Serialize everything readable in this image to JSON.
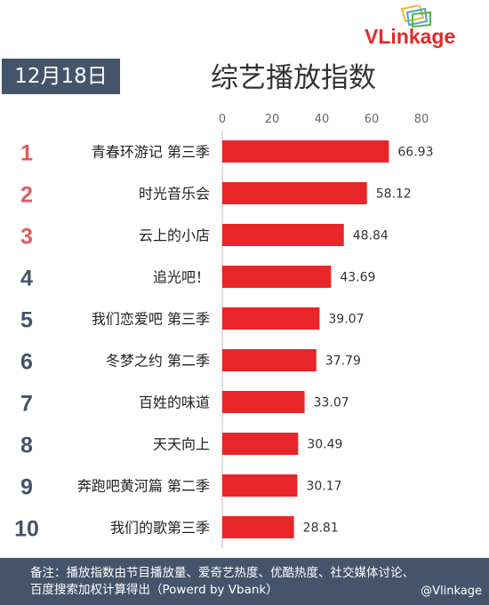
{
  "header": {
    "date": "12月18日",
    "title": "综艺播放指数",
    "logo_text": "VLinkage"
  },
  "colors": {
    "bar": "#e8262a",
    "rank_top": "#e05a5e",
    "rank_other": "#44546a",
    "badge": "#44546a",
    "axis": "#bfbfbf"
  },
  "chart_data": {
    "type": "bar",
    "orientation": "horizontal",
    "title": "综艺播放指数",
    "xlim": [
      0,
      80
    ],
    "xticks": [
      0,
      20,
      40,
      60,
      80
    ],
    "ranks": [
      "1",
      "2",
      "3",
      "4",
      "5",
      "6",
      "7",
      "8",
      "9",
      "10"
    ],
    "categories": [
      "青春环游记 第三季",
      "时光音乐会",
      "云上的小店",
      "追光吧！",
      "我们恋爱吧 第三季",
      "冬梦之约 第二季",
      "百姓的味道",
      "天天向上",
      "奔跑吧黄河篇 第二季",
      "我们的歌第三季"
    ],
    "values": [
      66.93,
      58.12,
      48.84,
      43.69,
      39.07,
      37.79,
      33.07,
      30.49,
      30.17,
      28.81
    ],
    "value_labels": [
      "66.93",
      "58.12",
      "48.84",
      "43.69",
      "39.07",
      "37.79",
      "33.07",
      "30.49",
      "30.17",
      "28.81"
    ]
  },
  "footer": {
    "line1": "备注：播放指数由节目播放量、爱奇艺热度、优酷热度、社交媒体讨论、",
    "line2": "百度搜索加权计算得出（Powerd by Vbank）",
    "watermark": "@Vlinkage"
  }
}
